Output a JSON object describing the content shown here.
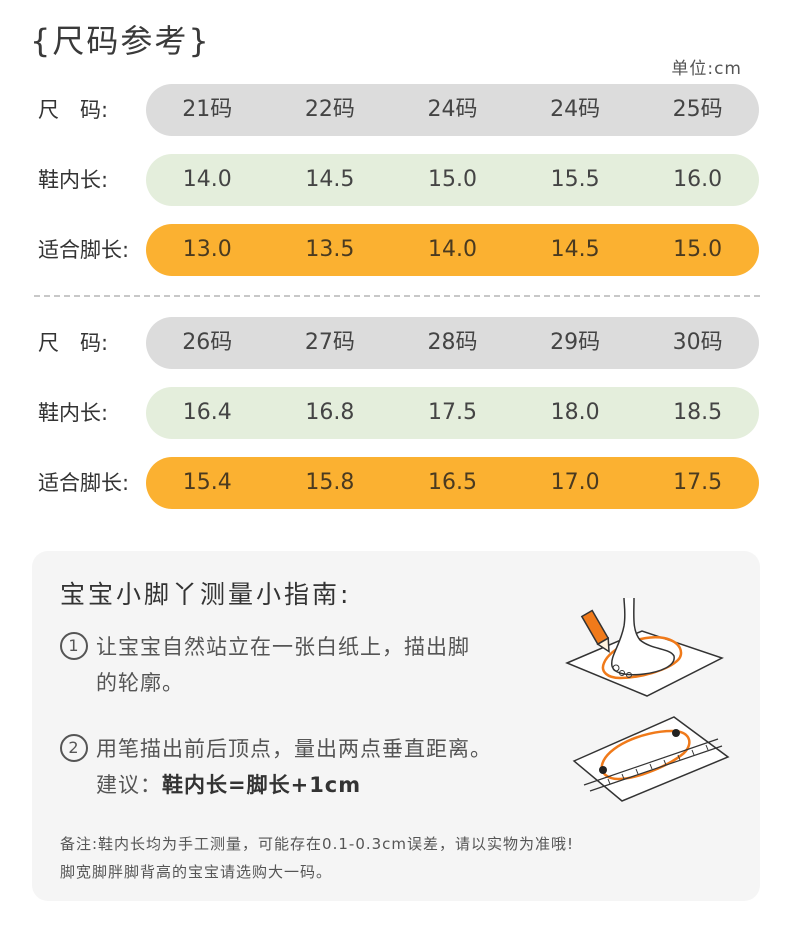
{
  "title": "{尺码参考}",
  "unit": "单位:cm",
  "tables": [
    {
      "size_label": "尺　码:",
      "sizes": [
        "21码",
        "22码",
        "24码",
        "24码",
        "25码"
      ],
      "inner_label": "鞋内长:",
      "inner": [
        "14.0",
        "14.5",
        "15.0",
        "15.5",
        "16.0"
      ],
      "foot_label": "适合脚长:",
      "foot": [
        "13.0",
        "13.5",
        "14.0",
        "14.5",
        "15.0"
      ]
    },
    {
      "size_label": "尺　码:",
      "sizes": [
        "26码",
        "27码",
        "28码",
        "29码",
        "30码"
      ],
      "inner_label": "鞋内长:",
      "inner": [
        "16.4",
        "16.8",
        "17.5",
        "18.0",
        "18.5"
      ],
      "foot_label": "适合脚长:",
      "foot": [
        "15.4",
        "15.8",
        "16.5",
        "17.0",
        "17.5"
      ]
    }
  ],
  "guide": {
    "title": "宝宝小脚丫测量小指南:",
    "step1_num": "1",
    "step1_line1": "让宝宝自然站立在一张白纸上，描出脚",
    "step1_line2": "的轮廓。",
    "step2_num": "2",
    "step2_line1": "用笔描出前后顶点，量出两点垂直距离。",
    "step2_tip_prefix": "建议：",
    "step2_tip": "鞋内长=脚长+1cm",
    "note_line1": "备注:鞋内长均为手工测量，可能存在0.1-0.3cm误差，请以实物为准哦!",
    "note_line2": "脚宽脚胖脚背高的宝宝请选购大一码。"
  },
  "colors": {
    "gray": "#dcdcdc",
    "green": "#e4eedc",
    "orange": "#fbb131"
  }
}
